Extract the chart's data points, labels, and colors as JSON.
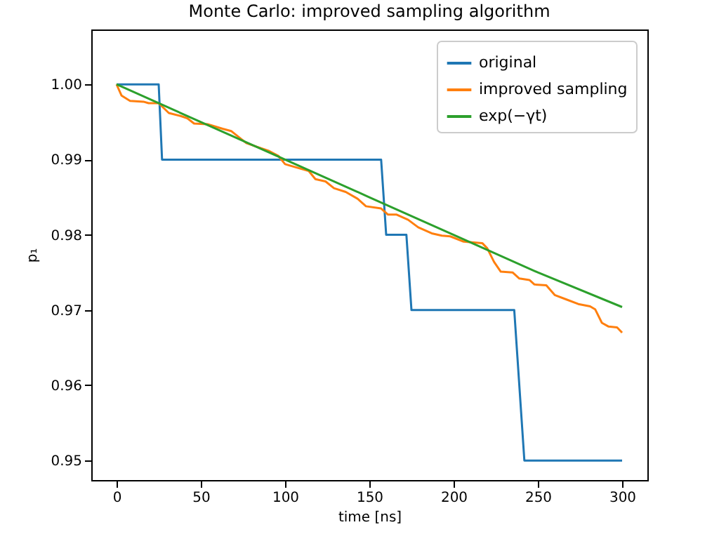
{
  "chart_data": {
    "type": "line",
    "title": "Monte Carlo: improved sampling algorithm",
    "xlabel": "time [ns]",
    "ylabel": "p₁",
    "xlim": [
      -15,
      315
    ],
    "ylim": [
      0.9474,
      1.0073
    ],
    "xticks": [
      0,
      50,
      100,
      150,
      200,
      250,
      300
    ],
    "yticks": [
      0.95,
      0.96,
      0.97,
      0.98,
      0.99,
      {
        "value": 1.0,
        "label": "1.00"
      }
    ],
    "grid": false,
    "legend": "top right",
    "line_style": "solid",
    "marker": "none",
    "series": [
      {
        "name": "original",
        "color": "#1f77b4",
        "x": [
          0,
          25,
          27,
          157,
          160,
          172,
          175,
          236,
          242,
          300
        ],
        "values": [
          1.0,
          1.0,
          0.99,
          0.99,
          0.98,
          0.98,
          0.97,
          0.97,
          0.95,
          0.95
        ]
      },
      {
        "name": "improved sampling",
        "color": "#ff7f0e",
        "x": [
          0,
          3,
          8,
          16,
          19,
          25,
          31,
          38,
          42,
          46,
          54,
          63,
          68,
          77,
          82,
          90,
          96,
          100,
          106,
          114,
          118,
          124,
          129,
          136,
          143,
          148,
          157,
          161,
          166,
          173,
          179,
          187,
          193,
          198,
          206,
          217,
          220,
          224,
          228,
          235,
          239,
          245,
          248,
          255,
          260,
          267,
          274,
          281,
          284,
          288,
          292,
          297,
          300
        ],
        "values": [
          1.0,
          0.9985,
          0.9978,
          0.9977,
          0.9975,
          0.9975,
          0.9962,
          0.9958,
          0.9955,
          0.9948,
          0.9947,
          0.9941,
          0.9938,
          0.9922,
          0.9918,
          0.9912,
          0.9905,
          0.9894,
          0.989,
          0.9885,
          0.9874,
          0.9871,
          0.9862,
          0.9857,
          0.9848,
          0.9838,
          0.9835,
          0.9827,
          0.9827,
          0.982,
          0.981,
          0.9802,
          0.9799,
          0.9798,
          0.9791,
          0.9789,
          0.9782,
          0.9764,
          0.9751,
          0.975,
          0.9742,
          0.974,
          0.9734,
          0.9733,
          0.972,
          0.9714,
          0.9708,
          0.9705,
          0.9701,
          0.9683,
          0.9678,
          0.9677,
          0.967
        ]
      },
      {
        "name": "exp(−γt)",
        "color": "#2ca02c",
        "x": [
          0,
          50,
          100,
          150,
          200,
          250,
          300
        ],
        "values": [
          1.0,
          0.995,
          0.99,
          0.985,
          0.98,
          0.975,
          0.9704
        ]
      }
    ]
  }
}
